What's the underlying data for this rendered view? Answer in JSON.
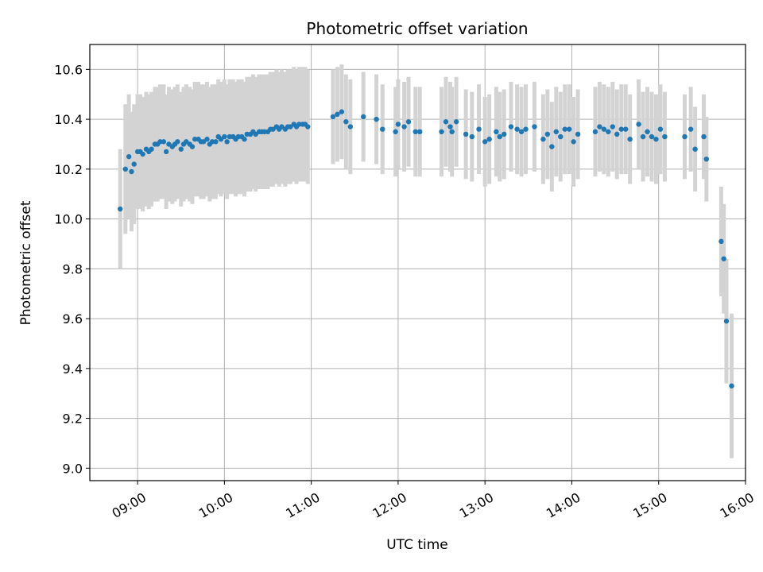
{
  "chart_data": {
    "type": "scatter",
    "title": "Photometric offset variation",
    "xlabel": "UTC time",
    "ylabel": "Photometric offset",
    "x_unit": "hours (UTC)",
    "xlim": [
      8.45,
      16.0
    ],
    "ylim": [
      8.95,
      10.7
    ],
    "x_ticks": [
      9,
      10,
      11,
      12,
      13,
      14,
      15,
      16
    ],
    "x_tick_labels": [
      "09:00",
      "10:00",
      "11:00",
      "12:00",
      "13:00",
      "14:00",
      "15:00",
      "16:00"
    ],
    "y_ticks": [
      9.0,
      9.2,
      9.4,
      9.6,
      9.8,
      10.0,
      10.2,
      10.4,
      10.6
    ],
    "y_tick_labels": [
      "9.0",
      "9.2",
      "9.4",
      "9.6",
      "9.8",
      "10.0",
      "10.2",
      "10.4",
      "10.6"
    ],
    "grid": true,
    "colors": {
      "point": "#1f77b4",
      "errorbar": "#d3d3d3",
      "grid": "#b0b0b0"
    },
    "series": [
      {
        "x": [
          8.8,
          8.86,
          8.9,
          8.93,
          8.96,
          9.0,
          9.03,
          9.06,
          9.1,
          9.13,
          9.16,
          9.2,
          9.23,
          9.26,
          9.3,
          9.33,
          9.36,
          9.4,
          9.43,
          9.46,
          9.5,
          9.53,
          9.56,
          9.6,
          9.63,
          9.66,
          9.7,
          9.73,
          9.76,
          9.8,
          9.83,
          9.86,
          9.9,
          9.93,
          9.96,
          10.0,
          10.03,
          10.06,
          10.1,
          10.13,
          10.16,
          10.2,
          10.23,
          10.26,
          10.3,
          10.33,
          10.36,
          10.4,
          10.43,
          10.46,
          10.5,
          10.53,
          10.56,
          10.6,
          10.63,
          10.66,
          10.7,
          10.73,
          10.76,
          10.8,
          10.83,
          10.86,
          10.9,
          10.93,
          10.96,
          11.25,
          11.3,
          11.35,
          11.4,
          11.45,
          11.6,
          11.75,
          11.82,
          11.97,
          12.0,
          12.07,
          12.12,
          12.2,
          12.25,
          12.5,
          12.55,
          12.6,
          12.62,
          12.67,
          12.78,
          12.85,
          12.93,
          13.0,
          13.05,
          13.13,
          13.17,
          13.22,
          13.3,
          13.37,
          13.42,
          13.47,
          13.57,
          13.67,
          13.72,
          13.77,
          13.82,
          13.87,
          13.92,
          13.97,
          14.02,
          14.07,
          14.27,
          14.32,
          14.37,
          14.42,
          14.47,
          14.52,
          14.57,
          14.62,
          14.67,
          14.77,
          14.82,
          14.87,
          14.92,
          14.97,
          15.02,
          15.07,
          15.3,
          15.37,
          15.42,
          15.52,
          15.55,
          15.72,
          15.75,
          15.78,
          15.84
        ],
        "y": [
          10.04,
          10.2,
          10.25,
          10.19,
          10.22,
          10.27,
          10.27,
          10.26,
          10.28,
          10.27,
          10.28,
          10.3,
          10.3,
          10.31,
          10.31,
          10.27,
          10.3,
          10.29,
          10.3,
          10.31,
          10.28,
          10.3,
          10.31,
          10.3,
          10.29,
          10.32,
          10.32,
          10.31,
          10.31,
          10.32,
          10.3,
          10.31,
          10.31,
          10.33,
          10.32,
          10.33,
          10.31,
          10.33,
          10.33,
          10.32,
          10.33,
          10.33,
          10.32,
          10.34,
          10.34,
          10.35,
          10.34,
          10.35,
          10.35,
          10.35,
          10.35,
          10.36,
          10.36,
          10.37,
          10.36,
          10.37,
          10.36,
          10.37,
          10.37,
          10.38,
          10.37,
          10.38,
          10.38,
          10.38,
          10.37,
          10.41,
          10.42,
          10.43,
          10.39,
          10.37,
          10.41,
          10.4,
          10.36,
          10.35,
          10.38,
          10.37,
          10.39,
          10.35,
          10.35,
          10.35,
          10.39,
          10.37,
          10.35,
          10.39,
          10.34,
          10.33,
          10.36,
          10.31,
          10.32,
          10.35,
          10.33,
          10.34,
          10.37,
          10.36,
          10.35,
          10.36,
          10.37,
          10.32,
          10.34,
          10.29,
          10.35,
          10.33,
          10.36,
          10.36,
          10.31,
          10.34,
          10.35,
          10.37,
          10.36,
          10.35,
          10.37,
          10.34,
          10.36,
          10.36,
          10.32,
          10.38,
          10.33,
          10.35,
          10.33,
          10.32,
          10.36,
          10.33,
          10.33,
          10.36,
          10.28,
          10.33,
          10.24,
          9.91,
          9.84,
          9.59,
          9.33
        ],
        "error": [
          0.24,
          0.26,
          0.25,
          0.24,
          0.24,
          0.23,
          0.23,
          0.23,
          0.23,
          0.23,
          0.23,
          0.23,
          0.23,
          0.23,
          0.23,
          0.23,
          0.23,
          0.23,
          0.23,
          0.23,
          0.23,
          0.23,
          0.23,
          0.23,
          0.23,
          0.23,
          0.23,
          0.23,
          0.23,
          0.23,
          0.23,
          0.23,
          0.23,
          0.23,
          0.23,
          0.23,
          0.23,
          0.23,
          0.23,
          0.23,
          0.23,
          0.23,
          0.23,
          0.23,
          0.23,
          0.23,
          0.23,
          0.23,
          0.23,
          0.23,
          0.23,
          0.23,
          0.23,
          0.23,
          0.23,
          0.23,
          0.23,
          0.23,
          0.23,
          0.23,
          0.23,
          0.23,
          0.23,
          0.23,
          0.23,
          0.19,
          0.19,
          0.19,
          0.19,
          0.19,
          0.18,
          0.18,
          0.18,
          0.18,
          0.18,
          0.18,
          0.18,
          0.18,
          0.18,
          0.18,
          0.18,
          0.18,
          0.18,
          0.18,
          0.18,
          0.18,
          0.18,
          0.18,
          0.18,
          0.18,
          0.18,
          0.18,
          0.18,
          0.18,
          0.18,
          0.18,
          0.18,
          0.18,
          0.18,
          0.18,
          0.18,
          0.18,
          0.18,
          0.18,
          0.18,
          0.18,
          0.18,
          0.18,
          0.18,
          0.18,
          0.18,
          0.18,
          0.18,
          0.18,
          0.18,
          0.18,
          0.18,
          0.18,
          0.18,
          0.18,
          0.18,
          0.18,
          0.17,
          0.17,
          0.17,
          0.17,
          0.17,
          0.22,
          0.22,
          0.25,
          0.29
        ]
      }
    ]
  }
}
